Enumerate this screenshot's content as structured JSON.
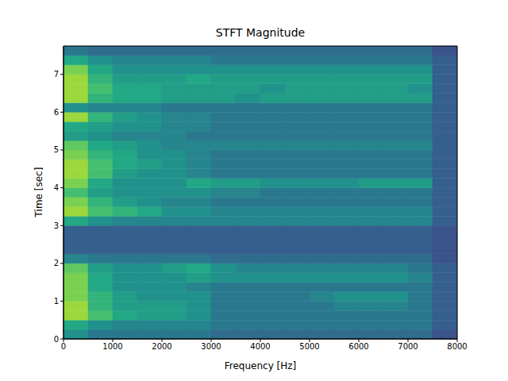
{
  "chart_data": {
    "type": "heatmap",
    "title": "STFT Magnitude",
    "x_label": "Frequency [Hz]",
    "y_label": "Time [sec]",
    "xlim": [
      0,
      8000
    ],
    "ylim": [
      0,
      7.75
    ],
    "xticks": [
      0,
      1000,
      2000,
      3000,
      4000,
      5000,
      6000,
      7000,
      8000
    ],
    "yticks": [
      0,
      1,
      2,
      3,
      4,
      5,
      6,
      7
    ],
    "x_bins": [
      0,
      500,
      1000,
      1500,
      2000,
      2500,
      3000,
      3500,
      4000,
      4500,
      5000,
      5500,
      6000,
      6500,
      7000,
      7500,
      8000
    ],
    "y_bins": [
      0,
      0.25,
      0.5,
      0.75,
      1,
      1.25,
      1.5,
      1.75,
      2,
      2.25,
      2.5,
      2.75,
      3,
      3.25,
      3.5,
      3.75,
      4,
      4.25,
      4.5,
      4.75,
      5,
      5.25,
      5.5,
      5.75,
      6,
      6.25,
      6.5,
      6.75,
      7,
      7.25,
      7.5,
      7.75
    ],
    "zlim": [
      0,
      10
    ],
    "cells": [
      [
        5,
        4,
        4,
        4,
        4,
        4,
        3.5,
        3.5,
        3.5,
        3.5,
        3.5,
        3.5,
        3.5,
        3.5,
        3.5,
        2.5
      ],
      [
        6,
        5,
        4.5,
        4.5,
        4.5,
        4.5,
        4,
        4,
        4,
        4,
        4,
        4,
        4,
        4,
        4,
        3
      ],
      [
        8.5,
        7,
        6,
        5.5,
        5.5,
        5,
        4,
        4,
        4,
        4,
        4,
        4,
        4,
        4,
        4,
        3
      ],
      [
        8.5,
        6.5,
        5.5,
        5.5,
        5.5,
        5,
        4,
        4,
        4,
        4,
        4,
        4.5,
        4.5,
        4.5,
        4,
        3
      ],
      [
        8,
        6.5,
        5.5,
        5,
        5,
        5,
        4,
        4,
        4,
        4,
        4.5,
        5,
        5,
        5,
        4,
        3
      ],
      [
        8,
        6,
        5,
        5,
        5,
        4.5,
        4,
        4,
        4,
        4,
        4,
        4,
        4,
        4,
        4,
        3
      ],
      [
        8,
        6,
        5,
        5,
        5,
        5.5,
        5,
        5,
        5,
        5,
        5,
        5,
        5,
        5,
        4.5,
        3
      ],
      [
        7.5,
        5.5,
        5,
        5,
        5.5,
        6,
        5,
        4.5,
        4.5,
        4.5,
        4.5,
        4.5,
        4.5,
        4.5,
        4,
        3
      ],
      [
        4.5,
        4,
        4,
        4,
        4,
        4,
        3.5,
        3.5,
        3.5,
        3.5,
        3.5,
        3.5,
        3.5,
        3.5,
        3.5,
        2.5
      ],
      [
        3,
        3,
        3,
        3,
        3,
        3,
        3,
        3,
        3,
        3,
        3,
        3,
        3,
        3,
        3,
        2.5
      ],
      [
        3,
        3,
        3,
        3,
        3,
        3,
        3,
        3,
        3,
        3,
        3,
        3,
        3,
        3,
        3,
        2.5
      ],
      [
        3,
        3,
        3,
        3,
        3,
        3,
        3,
        3,
        3,
        3,
        3,
        3,
        3,
        3,
        3,
        2.5
      ],
      [
        6,
        5,
        4.5,
        4.5,
        4.5,
        4.5,
        4.5,
        4.5,
        4.5,
        4.5,
        4.5,
        4.5,
        4.5,
        4.5,
        4.5,
        3
      ],
      [
        8.5,
        7,
        6.5,
        6,
        5,
        5,
        4.5,
        4.5,
        4.5,
        4.5,
        4.5,
        4.5,
        4.5,
        4.5,
        4.5,
        3
      ],
      [
        8,
        6.5,
        5.5,
        5,
        4.5,
        4.5,
        4,
        4,
        4,
        4,
        4,
        4,
        4,
        4,
        4,
        3
      ],
      [
        7,
        5.5,
        5,
        5,
        5,
        5,
        4.5,
        4.5,
        4,
        4,
        4,
        4,
        4,
        4,
        4,
        3
      ],
      [
        8,
        6,
        5,
        5,
        5,
        6,
        5.5,
        5.5,
        5,
        5,
        5,
        5,
        5.5,
        5.5,
        5.5,
        3
      ],
      [
        8.5,
        7,
        5.5,
        5,
        5,
        4.5,
        4,
        4,
        4,
        4,
        4,
        4,
        4,
        4,
        4,
        3
      ],
      [
        8.5,
        7,
        6,
        5.5,
        5,
        4.5,
        4,
        4,
        4,
        4,
        4,
        4,
        4,
        4,
        4,
        3
      ],
      [
        8,
        6.5,
        6,
        5,
        5,
        4.5,
        4,
        4,
        4,
        4,
        4,
        4,
        4,
        4,
        4,
        3
      ],
      [
        7.5,
        6,
        5.5,
        5,
        4.5,
        4.5,
        4.5,
        4.5,
        4.5,
        4.5,
        4.5,
        4.5,
        4.5,
        4.5,
        4.5,
        3
      ],
      [
        5.5,
        5,
        4.5,
        4.5,
        4.5,
        4,
        4,
        4,
        4,
        4,
        4,
        4,
        4,
        4,
        4,
        3
      ],
      [
        6,
        5.5,
        5,
        5,
        4.5,
        4.5,
        4,
        4,
        4,
        4,
        4,
        4,
        4,
        4,
        4,
        3
      ],
      [
        8.5,
        6.5,
        5.5,
        5,
        4.5,
        4.5,
        4,
        4,
        4,
        4,
        4,
        4,
        4,
        4,
        4,
        3
      ],
      [
        5,
        4.5,
        4.5,
        4.5,
        4,
        4,
        4,
        4,
        4,
        4,
        4,
        4,
        4,
        4,
        4,
        3
      ],
      [
        8.5,
        6.5,
        6,
        6,
        5.5,
        5.5,
        5.5,
        5,
        5.5,
        5.5,
        5.5,
        5.5,
        5.5,
        5.5,
        5.5,
        3
      ],
      [
        8.5,
        7,
        6,
        6,
        5.5,
        5.5,
        5.5,
        5.5,
        5,
        5.5,
        5.5,
        5.5,
        5.5,
        5.5,
        5,
        3
      ],
      [
        8.5,
        6.5,
        5.5,
        5.5,
        5.5,
        6,
        5.5,
        5.5,
        5.5,
        5.5,
        5.5,
        5.5,
        5.5,
        5.5,
        5.5,
        3
      ],
      [
        8,
        6,
        5,
        5,
        5,
        5,
        5,
        5,
        5,
        5,
        5,
        5,
        5,
        5,
        5,
        3
      ],
      [
        6,
        5,
        4.5,
        4.5,
        4.5,
        4.5,
        4,
        4,
        4,
        4,
        4,
        4,
        4,
        4,
        4,
        3
      ],
      [
        4,
        3.5,
        3.5,
        3.5,
        3.5,
        3.5,
        3.5,
        3.5,
        3.5,
        3.5,
        3.5,
        3.5,
        3.5,
        3.5,
        3.5,
        2.5
      ]
    ]
  }
}
